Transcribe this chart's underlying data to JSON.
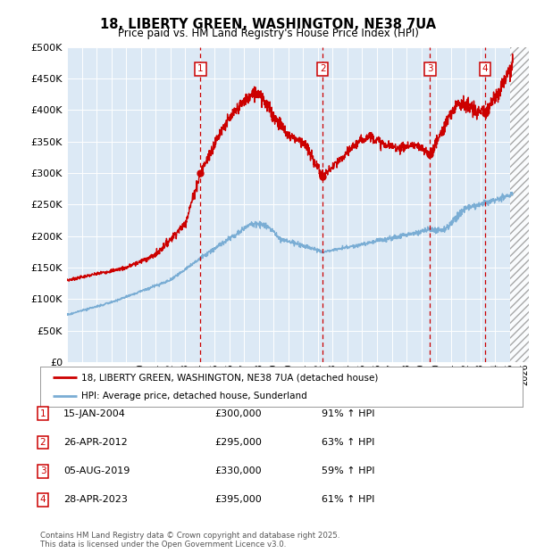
{
  "title": "18, LIBERTY GREEN, WASHINGTON, NE38 7UA",
  "subtitle": "Price paid vs. HM Land Registry's House Price Index (HPI)",
  "plot_bg_color": "#dce9f5",
  "ylim": [
    0,
    500000
  ],
  "yticks": [
    0,
    50000,
    100000,
    150000,
    200000,
    250000,
    300000,
    350000,
    400000,
    450000,
    500000
  ],
  "red_line_color": "#cc0000",
  "blue_line_color": "#7aadd4",
  "vline_color": "#cc0000",
  "marker_box_color": "#cc0000",
  "legend_label_red": "18, LIBERTY GREEN, WASHINGTON, NE38 7UA (detached house)",
  "legend_label_blue": "HPI: Average price, detached house, Sunderland",
  "sale_points": [
    {
      "num": 1,
      "year": 2004.04,
      "price": 300000,
      "date": "15-JAN-2004",
      "pct": "91%",
      "arrow": "↑"
    },
    {
      "num": 2,
      "year": 2012.32,
      "price": 295000,
      "date": "26-APR-2012",
      "pct": "63%",
      "arrow": "↑"
    },
    {
      "num": 3,
      "year": 2019.59,
      "price": 330000,
      "date": "05-AUG-2019",
      "pct": "59%",
      "arrow": "↑"
    },
    {
      "num": 4,
      "year": 2023.32,
      "price": 395000,
      "date": "28-APR-2023",
      "pct": "61%",
      "arrow": "↑"
    }
  ],
  "footer": "Contains HM Land Registry data © Crown copyright and database right 2025.\nThis data is licensed under the Open Government Licence v3.0."
}
